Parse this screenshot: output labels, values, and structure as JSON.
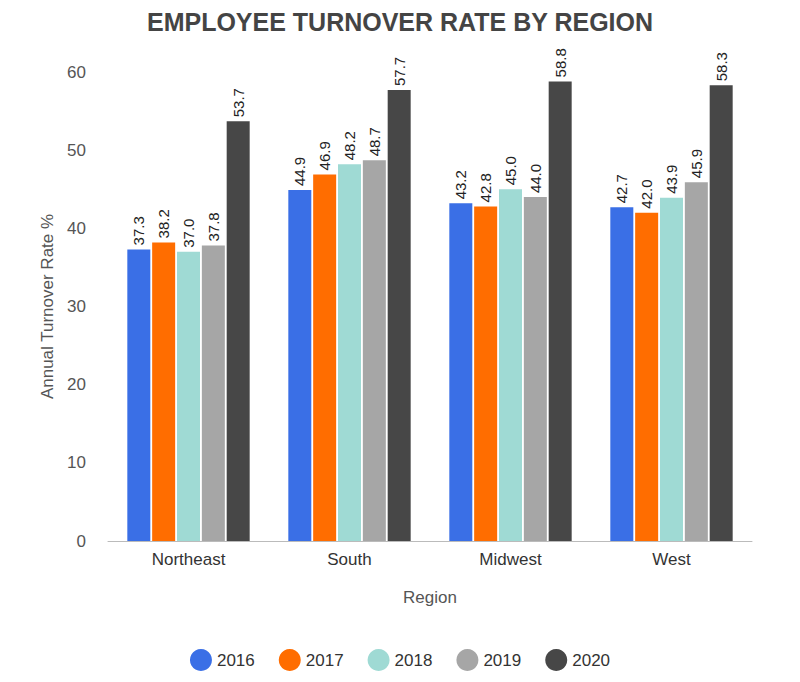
{
  "chart_data": {
    "type": "bar",
    "title": "EMPLOYEE TURNOVER RATE BY REGION",
    "x_label": "Region",
    "y_label": "Annual Turnover Rate %",
    "categories": [
      "Northeast",
      "South",
      "Midwest",
      "West"
    ],
    "series": [
      {
        "name": "2016",
        "color": "#3a6fe6",
        "values": [
          37.3,
          44.9,
          43.2,
          42.7
        ],
        "value_labels": [
          "37.3",
          "44.9",
          "43.2",
          "42.7"
        ]
      },
      {
        "name": "2017",
        "color": "#ff6d00",
        "values": [
          38.2,
          46.9,
          42.8,
          42.0
        ],
        "value_labels": [
          "38.2",
          "46.9",
          "42.8",
          "42.0"
        ]
      },
      {
        "name": "2018",
        "color": "#9fdad4",
        "values": [
          37.0,
          48.2,
          45.0,
          43.9
        ],
        "value_labels": [
          "37.0",
          "48.2",
          "45.0",
          "43.9"
        ]
      },
      {
        "name": "2019",
        "color": "#a6a6a6",
        "values": [
          37.8,
          48.7,
          44.0,
          45.9
        ],
        "value_labels": [
          "37.8",
          "48.7",
          "44.0",
          "45.9"
        ]
      },
      {
        "name": "2020",
        "color": "#474747",
        "values": [
          53.7,
          57.7,
          58.8,
          58.3
        ],
        "value_labels": [
          "53.7",
          "57.7",
          "58.8",
          "58.3"
        ]
      }
    ],
    "ylim": [
      0,
      60
    ],
    "yticks": [
      0,
      10,
      20,
      30,
      40,
      50,
      60
    ],
    "grid": false,
    "legend": "bottom",
    "data_labels": true
  }
}
